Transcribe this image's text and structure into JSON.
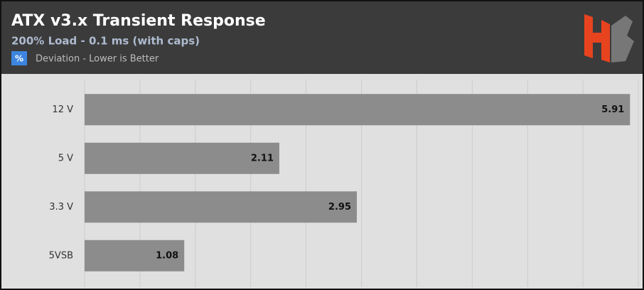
{
  "chart_data": {
    "type": "bar",
    "orientation": "horizontal",
    "title": "ATX v3.x Transient Response",
    "subtitle": "200% Load - 0.1 ms (with caps)",
    "legend_symbol": "%",
    "legend_label": "Deviation - Lower is Better",
    "categories": [
      "12 V",
      "5 V",
      "3.3 V",
      "5VSB"
    ],
    "values": [
      5.91,
      2.11,
      2.95,
      1.08
    ],
    "color": "#8c8c8c",
    "xlim": [
      0,
      6
    ],
    "xticks": [
      0,
      0.6,
      1.2,
      1.8,
      2.4,
      3,
      3.6,
      4.2,
      4.8,
      5.4,
      6
    ],
    "grid": true
  }
}
